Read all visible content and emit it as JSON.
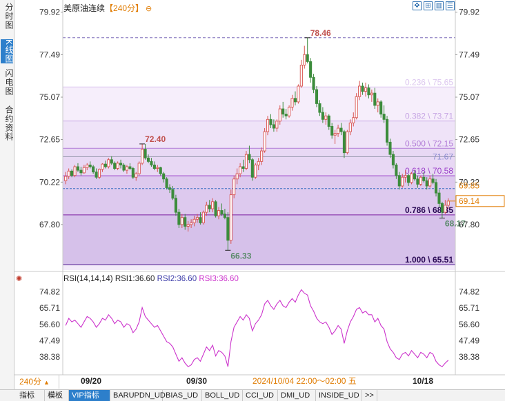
{
  "side_tabs": [
    {
      "label": "分时图",
      "active": false
    },
    {
      "label": "K线图",
      "active": true
    },
    {
      "label": "闪电图",
      "active": false
    },
    {
      "label": "合约资料",
      "active": false
    }
  ],
  "title": {
    "name": "美原油连续",
    "period": "【240分】",
    "circle": "⊖"
  },
  "toolbar": {
    "icons": [
      "move-icon",
      "expand-icon",
      "indicator-icon",
      "settings-icon"
    ]
  },
  "price_axis": {
    "ticks": [
      "79.92",
      "77.49",
      "75.07",
      "72.65",
      "70.22",
      "67.80"
    ]
  },
  "fib_levels": [
    {
      "label": "0.236 \\ 75.65",
      "value": 75.65,
      "color": "#dcc6ef"
    },
    {
      "label": "0.382 \\ 73.71",
      "value": 73.71,
      "color": "#c7a6e4"
    },
    {
      "label": "0.500 \\ 72.15",
      "value": 72.15,
      "color": "#b07ad6"
    },
    {
      "label": "0.618 \\ 70.58",
      "value": 70.58,
      "color": "#9b40c9"
    },
    {
      "label": "0.786 \\ 68.35",
      "value": 68.35,
      "color": "#7b1fa2"
    },
    {
      "label": "1.000 \\ 65.51",
      "value": 65.51,
      "color": "#4a148c"
    }
  ],
  "annotations": {
    "high": "78.46",
    "prev_high": "72.40",
    "low": "66.33",
    "recent_low": "68.17",
    "grey_line": "71.67",
    "dashed_line": "69.85",
    "last_price": "69.14"
  },
  "rsi": {
    "legend_name": "RSI(14,14,14)",
    "rsi1": "RSI1:36.60",
    "rsi2": "RSI2:36.60",
    "rsi3": "RSI3:36.60",
    "ticks": [
      "74.82",
      "65.71",
      "56.60",
      "47.49",
      "38.38"
    ],
    "color": "#cc33cc"
  },
  "x_axis": {
    "dates": [
      "09/20",
      "09/30",
      "10/18"
    ],
    "cursor_label": "2024/10/04 22:00～02:00 五"
  },
  "period_button": {
    "label": "240分",
    "arrow": "▲"
  },
  "bottom_tabs": [
    "指标",
    "模板",
    "VIP指标",
    "BARUPDN_UD",
    "BIAS_UD",
    "BOLL_UD",
    "CCI_UD",
    "DMI_UD",
    "INSIDE_UD",
    ">>"
  ],
  "colors": {
    "up": "#d9534f",
    "down": "#3c8c3c",
    "accent": "#e07b00",
    "rsi": "#cc33cc"
  },
  "chart_data": {
    "type": "candlestick",
    "title": "美原油连续",
    "period": "240分",
    "ylim": [
      65.2,
      80.3
    ],
    "candles": [
      [
        70.3,
        70.8,
        70.1,
        70.55
      ],
      [
        70.55,
        71.0,
        70.4,
        70.85
      ],
      [
        70.85,
        70.95,
        70.5,
        70.6
      ],
      [
        70.6,
        71.2,
        70.5,
        71.1
      ],
      [
        71.1,
        71.3,
        70.8,
        70.9
      ],
      [
        70.9,
        71.1,
        70.6,
        70.75
      ],
      [
        70.75,
        71.2,
        70.7,
        71.05
      ],
      [
        71.05,
        71.3,
        70.9,
        71.2
      ],
      [
        71.2,
        71.4,
        71.0,
        71.1
      ],
      [
        71.1,
        71.2,
        70.7,
        70.8
      ],
      [
        70.8,
        71.0,
        70.4,
        70.5
      ],
      [
        70.5,
        71.0,
        70.4,
        70.95
      ],
      [
        70.95,
        71.3,
        70.8,
        71.25
      ],
      [
        71.25,
        71.45,
        71.0,
        71.1
      ],
      [
        71.1,
        71.6,
        71.0,
        71.5
      ],
      [
        71.5,
        71.7,
        71.2,
        71.3
      ],
      [
        71.3,
        71.4,
        70.9,
        71.0
      ],
      [
        71.0,
        71.4,
        70.9,
        71.3
      ],
      [
        71.3,
        71.5,
        71.0,
        71.2
      ],
      [
        71.2,
        71.3,
        70.8,
        70.9
      ],
      [
        70.9,
        71.2,
        70.7,
        71.1
      ],
      [
        71.1,
        71.3,
        70.9,
        71.0
      ],
      [
        71.0,
        71.1,
        70.4,
        70.5
      ],
      [
        70.5,
        70.8,
        70.3,
        70.7
      ],
      [
        70.7,
        71.4,
        70.6,
        71.3
      ],
      [
        71.3,
        72.4,
        71.2,
        72.1
      ],
      [
        72.1,
        72.4,
        71.5,
        71.6
      ],
      [
        71.6,
        71.8,
        71.3,
        71.4
      ],
      [
        71.4,
        71.6,
        71.1,
        71.2
      ],
      [
        71.2,
        71.4,
        70.9,
        71.0
      ],
      [
        71.0,
        71.2,
        70.8,
        71.05
      ],
      [
        71.05,
        71.1,
        70.6,
        70.7
      ],
      [
        70.7,
        70.8,
        70.2,
        70.4
      ],
      [
        70.4,
        70.5,
        69.8,
        69.9
      ],
      [
        69.9,
        70.1,
        69.6,
        69.8
      ],
      [
        69.8,
        70.0,
        69.2,
        69.3
      ],
      [
        69.3,
        69.5,
        68.3,
        68.5
      ],
      [
        68.5,
        68.7,
        67.6,
        67.8
      ],
      [
        67.8,
        68.4,
        67.6,
        68.2
      ],
      [
        68.2,
        68.4,
        67.5,
        67.7
      ],
      [
        67.7,
        68.0,
        67.4,
        67.8
      ],
      [
        67.8,
        68.1,
        67.6,
        67.9
      ],
      [
        67.9,
        68.3,
        67.7,
        68.1
      ],
      [
        68.1,
        68.4,
        67.9,
        68.2
      ],
      [
        68.2,
        68.5,
        67.8,
        67.9
      ],
      [
        67.9,
        68.6,
        67.8,
        68.5
      ],
      [
        68.5,
        69.1,
        68.3,
        68.9
      ],
      [
        68.9,
        69.2,
        68.5,
        68.7
      ],
      [
        68.7,
        69.3,
        68.5,
        69.1
      ],
      [
        69.1,
        69.2,
        68.2,
        68.3
      ],
      [
        68.3,
        68.8,
        68.1,
        68.6
      ],
      [
        68.6,
        69.0,
        68.3,
        68.4
      ],
      [
        68.4,
        68.7,
        68.1,
        68.2
      ],
      [
        68.2,
        68.5,
        66.33,
        66.9
      ],
      [
        66.9,
        69.8,
        66.7,
        69.5
      ],
      [
        69.5,
        70.6,
        69.3,
        70.4
      ],
      [
        70.4,
        71.0,
        70.1,
        70.7
      ],
      [
        70.7,
        71.3,
        70.5,
        71.1
      ],
      [
        71.1,
        71.5,
        70.8,
        71.0
      ],
      [
        71.0,
        72.0,
        70.9,
        71.8
      ],
      [
        71.8,
        72.3,
        71.3,
        71.5
      ],
      [
        71.5,
        71.6,
        70.3,
        70.5
      ],
      [
        70.5,
        71.3,
        70.4,
        71.2
      ],
      [
        71.2,
        71.6,
        70.9,
        71.4
      ],
      [
        71.4,
        72.2,
        71.2,
        72.0
      ],
      [
        72.0,
        73.3,
        71.9,
        73.1
      ],
      [
        73.1,
        74.0,
        72.9,
        73.8
      ],
      [
        73.8,
        74.1,
        73.3,
        73.5
      ],
      [
        73.5,
        73.8,
        73.1,
        73.3
      ],
      [
        73.3,
        73.8,
        73.1,
        73.7
      ],
      [
        73.7,
        74.6,
        73.5,
        74.4
      ],
      [
        74.4,
        74.8,
        73.9,
        74.1
      ],
      [
        74.1,
        74.4,
        73.8,
        74.0
      ],
      [
        74.0,
        74.6,
        73.9,
        74.5
      ],
      [
        74.5,
        75.2,
        74.3,
        75.0
      ],
      [
        75.0,
        75.4,
        74.6,
        74.8
      ],
      [
        74.8,
        75.8,
        74.7,
        75.7
      ],
      [
        75.7,
        77.2,
        75.6,
        76.9
      ],
      [
        76.9,
        78.0,
        76.7,
        77.5
      ],
      [
        77.5,
        78.46,
        77.0,
        77.1
      ],
      [
        77.1,
        77.3,
        75.9,
        76.2
      ],
      [
        76.2,
        76.4,
        75.3,
        75.5
      ],
      [
        75.5,
        75.7,
        74.5,
        74.7
      ],
      [
        74.7,
        74.9,
        74.0,
        74.2
      ],
      [
        74.2,
        74.5,
        73.6,
        73.8
      ],
      [
        73.8,
        74.2,
        73.5,
        74.0
      ],
      [
        74.0,
        74.1,
        73.2,
        73.4
      ],
      [
        73.4,
        73.6,
        72.7,
        72.9
      ],
      [
        72.9,
        73.2,
        72.4,
        73.0
      ],
      [
        73.0,
        73.5,
        72.8,
        73.3
      ],
      [
        73.3,
        73.6,
        72.9,
        73.1
      ],
      [
        73.1,
        73.2,
        71.6,
        71.9
      ],
      [
        71.9,
        73.2,
        71.8,
        73.1
      ],
      [
        73.1,
        73.8,
        72.9,
        73.6
      ],
      [
        73.6,
        74.2,
        73.4,
        73.9
      ],
      [
        73.9,
        75.3,
        73.8,
        75.1
      ],
      [
        75.1,
        76.0,
        74.9,
        75.7
      ],
      [
        75.7,
        75.9,
        75.2,
        75.4
      ],
      [
        75.4,
        75.9,
        75.1,
        75.6
      ],
      [
        75.6,
        75.8,
        75.0,
        75.2
      ],
      [
        75.2,
        75.5,
        74.8,
        75.3
      ],
      [
        75.3,
        75.6,
        74.4,
        74.6
      ],
      [
        74.6,
        75.0,
        74.2,
        74.8
      ],
      [
        74.8,
        74.9,
        73.9,
        74.1
      ],
      [
        74.1,
        74.6,
        73.6,
        73.8
      ],
      [
        73.8,
        74.0,
        72.3,
        72.5
      ],
      [
        72.5,
        72.7,
        71.6,
        71.8
      ],
      [
        71.8,
        72.0,
        71.0,
        71.2
      ],
      [
        71.2,
        71.3,
        70.4,
        70.6
      ],
      [
        70.6,
        70.8,
        69.8,
        70.0
      ],
      [
        70.0,
        70.7,
        69.9,
        70.5
      ],
      [
        70.5,
        70.9,
        70.2,
        70.6
      ],
      [
        70.6,
        70.7,
        70.0,
        70.2
      ],
      [
        70.2,
        70.8,
        70.1,
        70.7
      ],
      [
        70.7,
        70.9,
        70.3,
        70.4
      ],
      [
        70.4,
        70.6,
        69.9,
        70.1
      ],
      [
        70.1,
        70.6,
        70.0,
        70.5
      ],
      [
        70.5,
        70.8,
        70.2,
        70.3
      ],
      [
        70.3,
        70.5,
        69.8,
        70.0
      ],
      [
        70.0,
        70.6,
        69.9,
        70.4
      ],
      [
        70.4,
        70.7,
        70.1,
        70.2
      ],
      [
        70.2,
        70.4,
        69.4,
        69.6
      ],
      [
        69.6,
        69.8,
        68.8,
        69.0
      ],
      [
        69.0,
        69.1,
        68.17,
        68.5
      ],
      [
        68.5,
        69.2,
        68.4,
        68.9
      ],
      [
        68.9,
        69.3,
        68.7,
        69.14
      ]
    ],
    "rsi_ylim": [
      30,
      80
    ],
    "rsi_values": [
      56,
      60,
      58,
      59,
      57,
      55,
      58,
      61,
      60,
      58,
      55,
      57,
      60,
      59,
      62,
      60,
      57,
      59,
      58,
      55,
      57,
      56,
      52,
      54,
      58,
      66,
      61,
      59,
      57,
      55,
      56,
      53,
      50,
      47,
      46,
      44,
      40,
      36,
      38,
      35,
      33,
      34,
      37,
      38,
      36,
      40,
      44,
      42,
      45,
      39,
      42,
      41,
      39,
      33,
      47,
      55,
      58,
      61,
      59,
      62,
      60,
      53,
      57,
      59,
      62,
      68,
      70,
      67,
      65,
      68,
      70,
      67,
      66,
      69,
      71,
      69,
      73,
      76,
      74,
      73,
      67,
      64,
      60,
      58,
      57,
      58,
      55,
      51,
      53,
      56,
      54,
      46,
      53,
      58,
      61,
      65,
      66,
      63,
      64,
      62,
      62,
      58,
      60,
      56,
      54,
      47,
      43,
      41,
      38,
      37,
      40,
      41,
      39,
      42,
      40,
      38,
      41,
      40,
      38,
      41,
      40,
      36,
      34,
      33,
      35,
      36.6
    ]
  }
}
